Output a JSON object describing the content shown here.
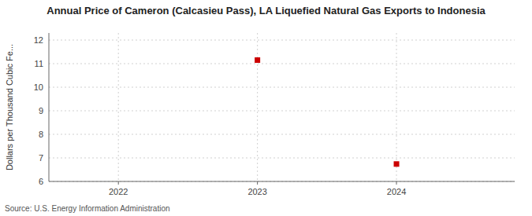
{
  "chart_data": {
    "type": "scatter",
    "title": "Annual Price of Cameron (Calcasieu Pass), LA Liquefied Natural Gas Exports to Indonesia",
    "y_label": "Dollars per Thousand Cubic Fe...",
    "source": "Source: U.S. Energy Information Administration",
    "x": [
      2023,
      2024
    ],
    "values": [
      11.15,
      6.74
    ],
    "color": "#cc0000",
    "marker": "square",
    "xlim": [
      2021.5,
      2024.85
    ],
    "xticks": [
      2022,
      2023,
      2024
    ],
    "ylim": [
      6,
      12.3
    ],
    "yticks": [
      6,
      7,
      8,
      9,
      10,
      11,
      12
    ],
    "grid": true
  }
}
